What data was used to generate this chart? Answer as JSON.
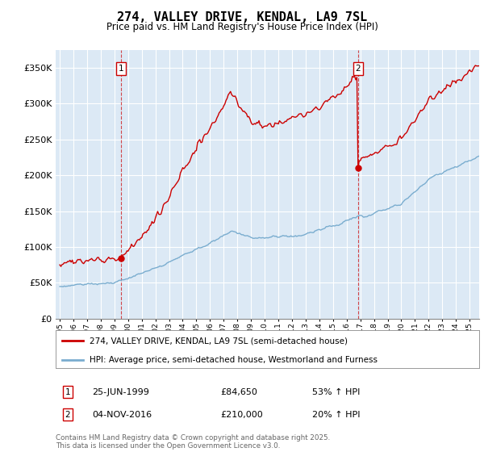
{
  "title": "274, VALLEY DRIVE, KENDAL, LA9 7SL",
  "subtitle": "Price paid vs. HM Land Registry's House Price Index (HPI)",
  "ylabel_ticks": [
    "£0",
    "£50K",
    "£100K",
    "£150K",
    "£200K",
    "£250K",
    "£300K",
    "£350K"
  ],
  "ytick_values": [
    0,
    50000,
    100000,
    150000,
    200000,
    250000,
    300000,
    350000
  ],
  "ylim": [
    0,
    375000
  ],
  "xlim_start": 1994.7,
  "xlim_end": 2025.7,
  "bg_color": "#dce9f5",
  "red_color": "#cc0000",
  "blue_color": "#7aadcf",
  "grid_color": "#ffffff",
  "ann1_x": 1999.48,
  "ann1_y": 84650,
  "ann1_date": "25-JUN-1999",
  "ann1_price": "£84,650",
  "ann1_pct": "53% ↑ HPI",
  "ann2_x": 2016.84,
  "ann2_y": 210000,
  "ann2_date": "04-NOV-2016",
  "ann2_price": "£210,000",
  "ann2_pct": "20% ↑ HPI",
  "legend_line1": "274, VALLEY DRIVE, KENDAL, LA9 7SL (semi-detached house)",
  "legend_line2": "HPI: Average price, semi-detached house, Westmorland and Furness",
  "footer": "Contains HM Land Registry data © Crown copyright and database right 2025.\nThis data is licensed under the Open Government Licence v3.0.",
  "xtick_years": [
    1995,
    1996,
    1997,
    1998,
    1999,
    2000,
    2001,
    2002,
    2003,
    2004,
    2005,
    2006,
    2007,
    2008,
    2009,
    2010,
    2011,
    2012,
    2013,
    2014,
    2015,
    2016,
    2017,
    2018,
    2019,
    2020,
    2021,
    2022,
    2023,
    2024,
    2025
  ]
}
